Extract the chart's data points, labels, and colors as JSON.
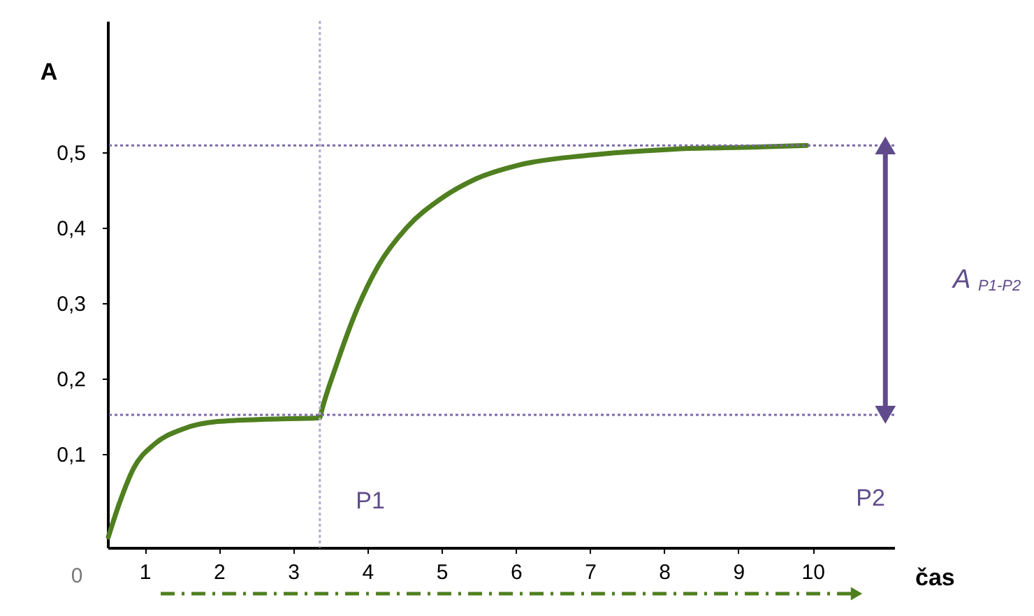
{
  "chart_data": {
    "type": "line",
    "xlabel": "čas",
    "ylabel": "A",
    "xlim": [
      0.5,
      11.1
    ],
    "ylim": [
      -0.024,
      0.674
    ],
    "xticks": [
      1,
      2,
      3,
      4,
      5,
      6,
      7,
      8,
      9,
      10
    ],
    "yticks": [
      {
        "value": 0.1,
        "label": "0,1"
      },
      {
        "value": 0.2,
        "label": "0,2"
      },
      {
        "value": 0.3,
        "label": "0,3"
      },
      {
        "value": 0.4,
        "label": "0,4"
      },
      {
        "value": 0.5,
        "label": "0,5"
      }
    ],
    "series": [
      {
        "color": "#4f7f1f",
        "x": [
          0.51,
          0.66,
          0.85,
          1.13,
          1.51,
          1.98,
          2.64,
          3.36,
          3.37,
          3.58,
          3.87,
          4.15,
          4.53,
          5.0,
          5.47,
          6.04,
          6.98,
          8.11,
          9.25,
          9.92
        ],
        "values": [
          -0.01,
          0.035,
          0.081,
          0.113,
          0.133,
          0.143,
          0.146,
          0.148,
          0.152,
          0.217,
          0.294,
          0.35,
          0.4,
          0.439,
          0.465,
          0.483,
          0.496,
          0.504,
          0.507,
          0.509
        ]
      }
    ],
    "ref_lines": [
      {
        "axis": "x",
        "value": 3.36,
        "color": "#b3a9cc",
        "line_style": "dotted"
      },
      {
        "axis": "y",
        "value": 0.152,
        "color": "#7a68a6",
        "line_style": "dotted"
      },
      {
        "axis": "y",
        "value": 0.509,
        "color": "#7a68a6",
        "line_style": "dotted"
      }
    ],
    "annotations": [
      "0",
      "P1",
      "P2",
      "A$_{P1-P2}$"
    ],
    "marker": "none",
    "line_style": "solid",
    "grid": false
  }
}
